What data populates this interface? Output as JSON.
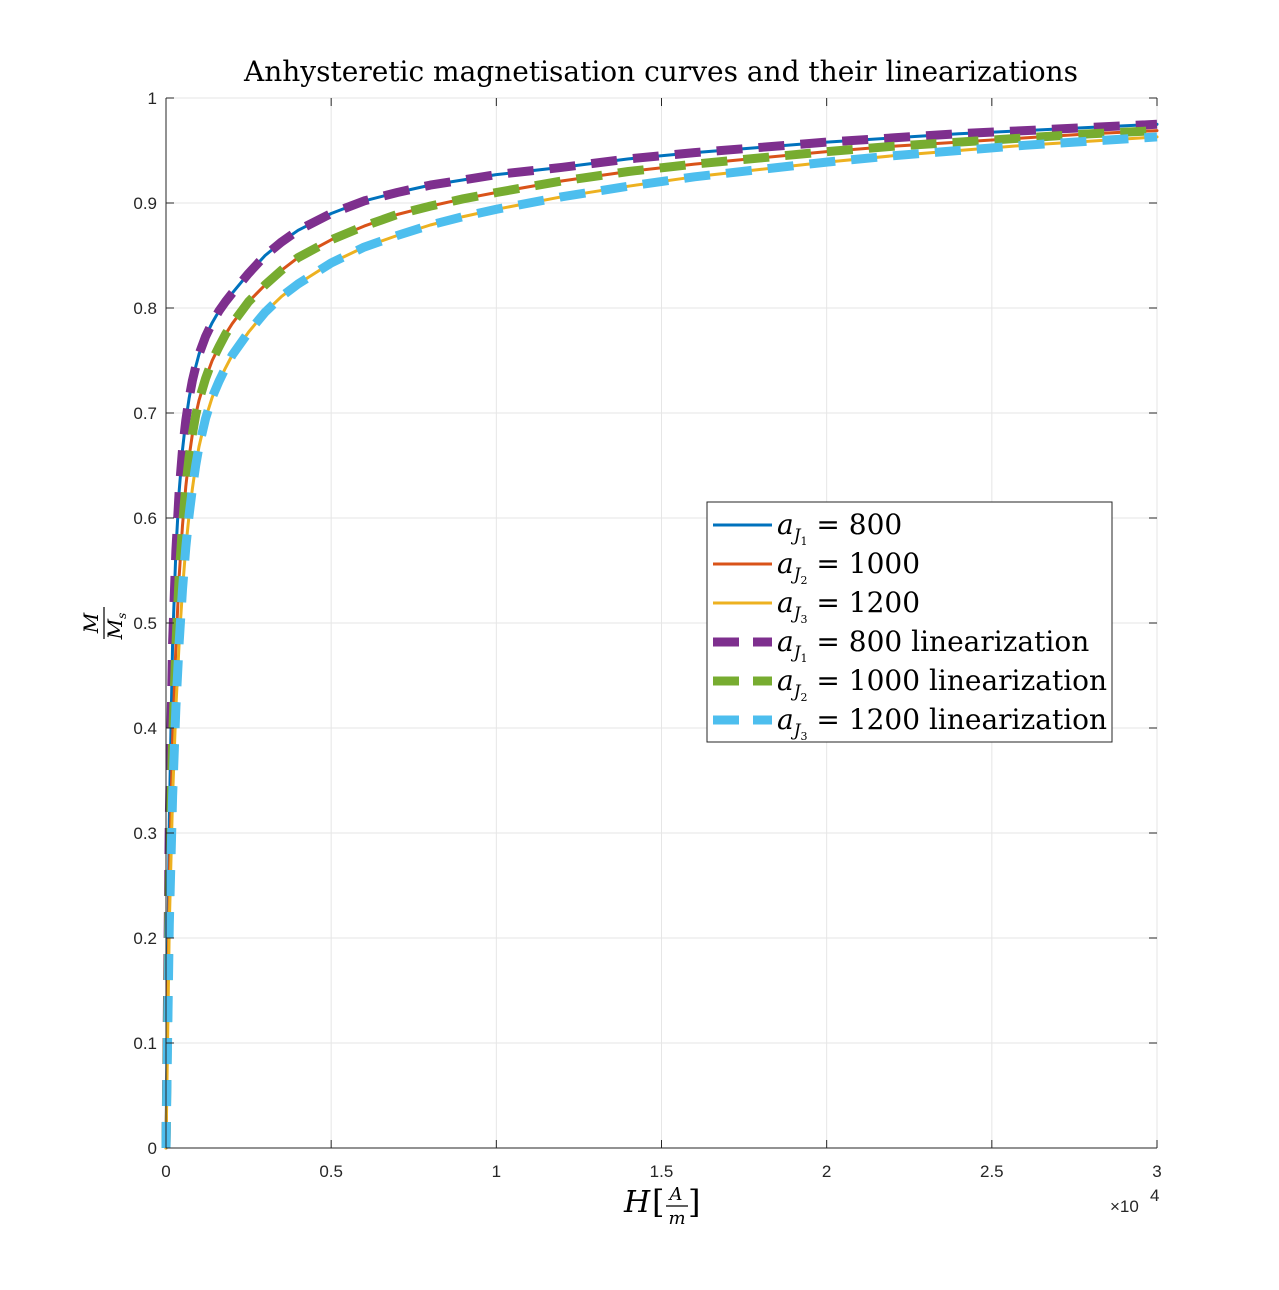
{
  "chart_data": {
    "type": "line",
    "title": "Anhysteretic magnetisation curves and their linearizations",
    "xlabel": "H[A/m]",
    "ylabel": "M/Ms",
    "x_exponent_label": "×10",
    "x_exponent_power": "4",
    "xlim": [
      0,
      30000
    ],
    "ylim": [
      0,
      1
    ],
    "xticks": [
      0,
      5000,
      10000,
      15000,
      20000,
      25000,
      30000
    ],
    "xtick_labels": [
      "0",
      "0.5",
      "1",
      "1.5",
      "2",
      "2.5",
      "3"
    ],
    "yticks": [
      0,
      0.1,
      0.2,
      0.3,
      0.4,
      0.5,
      0.6,
      0.7,
      0.8,
      0.9,
      1
    ],
    "ytick_labels": [
      "0",
      "0.1",
      "0.2",
      "0.3",
      "0.4",
      "0.5",
      "0.6",
      "0.7",
      "0.8",
      "0.9",
      "1"
    ],
    "grid": true,
    "legend_position": "center-right",
    "x": [
      0,
      100,
      200,
      300,
      400,
      500,
      600,
      700,
      800,
      900,
      1000,
      1200,
      1400,
      1600,
      1800,
      2000,
      2500,
      3000,
      3500,
      4000,
      5000,
      6000,
      7000,
      8000,
      9000,
      10000,
      12000,
      14000,
      16000,
      18000,
      20000,
      22000,
      24000,
      26000,
      28000,
      30000
    ],
    "series": [
      {
        "name_main": "a",
        "name_sub": "J",
        "name_subsub": "1",
        "name_rest": " = 800",
        "color": "#0072bd",
        "style": "solid",
        "values": [
          0,
          0.313,
          0.481,
          0.569,
          0.626,
          0.665,
          0.693,
          0.714,
          0.731,
          0.744,
          0.756,
          0.773,
          0.786,
          0.797,
          0.806,
          0.814,
          0.833,
          0.85,
          0.863,
          0.874,
          0.89,
          0.902,
          0.91,
          0.917,
          0.922,
          0.927,
          0.934,
          0.942,
          0.948,
          0.953,
          0.958,
          0.962,
          0.966,
          0.969,
          0.972,
          0.975
        ]
      },
      {
        "name_main": "a",
        "name_sub": "J",
        "name_subsub": "2",
        "name_rest": " = 1000",
        "color": "#d95319",
        "style": "solid",
        "values": [
          0,
          0.254,
          0.39,
          0.478,
          0.545,
          0.593,
          0.63,
          0.658,
          0.68,
          0.698,
          0.712,
          0.733,
          0.75,
          0.763,
          0.775,
          0.785,
          0.806,
          0.822,
          0.836,
          0.848,
          0.865,
          0.878,
          0.889,
          0.897,
          0.904,
          0.91,
          0.921,
          0.93,
          0.937,
          0.943,
          0.949,
          0.954,
          0.958,
          0.962,
          0.966,
          0.969
        ]
      },
      {
        "name_main": "a",
        "name_sub": "J",
        "name_subsub": "3",
        "name_rest": " = 1200",
        "color": "#edb120",
        "style": "solid",
        "values": [
          0,
          0.213,
          0.335,
          0.42,
          0.482,
          0.532,
          0.572,
          0.603,
          0.628,
          0.65,
          0.668,
          0.695,
          0.715,
          0.73,
          0.743,
          0.755,
          0.777,
          0.796,
          0.811,
          0.823,
          0.843,
          0.858,
          0.869,
          0.879,
          0.887,
          0.894,
          0.906,
          0.916,
          0.925,
          0.932,
          0.939,
          0.945,
          0.95,
          0.955,
          0.959,
          0.963
        ]
      },
      {
        "name_main": "a",
        "name_sub": "J",
        "name_subsub": "1",
        "name_rest": " = 800 linearization",
        "color": "#7e2f8e",
        "style": "dashed",
        "values": [
          0,
          0.313,
          0.481,
          0.569,
          0.626,
          0.665,
          0.693,
          0.714,
          0.731,
          0.744,
          0.756,
          0.773,
          0.786,
          0.797,
          0.806,
          0.814,
          0.833,
          0.85,
          0.863,
          0.874,
          0.89,
          0.902,
          0.91,
          0.917,
          0.922,
          0.927,
          0.934,
          0.942,
          0.948,
          0.953,
          0.958,
          0.962,
          0.966,
          0.969,
          0.972,
          0.975
        ]
      },
      {
        "name_main": "a",
        "name_sub": "J",
        "name_subsub": "2",
        "name_rest": " = 1000 linearization",
        "color": "#77ac30",
        "style": "dashed",
        "values": [
          0,
          0.254,
          0.39,
          0.478,
          0.545,
          0.593,
          0.63,
          0.658,
          0.68,
          0.698,
          0.712,
          0.733,
          0.75,
          0.763,
          0.775,
          0.785,
          0.806,
          0.822,
          0.836,
          0.848,
          0.865,
          0.878,
          0.889,
          0.897,
          0.904,
          0.91,
          0.921,
          0.93,
          0.937,
          0.943,
          0.949,
          0.954,
          0.958,
          0.962,
          0.966,
          0.969
        ]
      },
      {
        "name_main": "a",
        "name_sub": "J",
        "name_subsub": "3",
        "name_rest": " = 1200 linearization",
        "color": "#4dbeee",
        "style": "dashed",
        "values": [
          0,
          0.213,
          0.335,
          0.42,
          0.482,
          0.532,
          0.572,
          0.603,
          0.628,
          0.65,
          0.668,
          0.695,
          0.715,
          0.73,
          0.743,
          0.755,
          0.777,
          0.796,
          0.811,
          0.823,
          0.843,
          0.858,
          0.869,
          0.879,
          0.887,
          0.894,
          0.906,
          0.916,
          0.925,
          0.932,
          0.939,
          0.945,
          0.95,
          0.955,
          0.959,
          0.963
        ]
      }
    ]
  }
}
